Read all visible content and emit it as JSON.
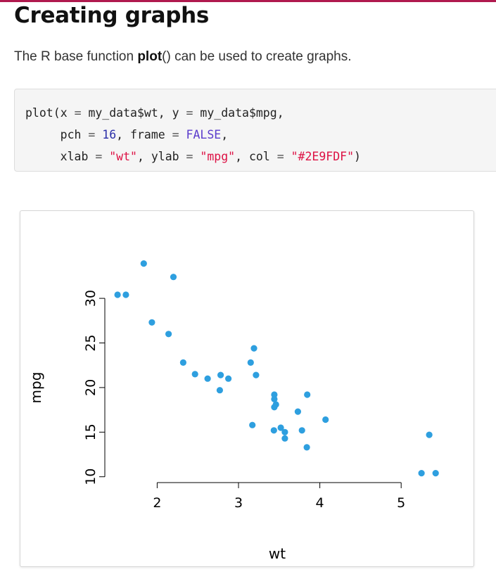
{
  "page": {
    "title": "Creating graphs",
    "intro": {
      "before": "The R base function ",
      "function_name": "plot",
      "after": "() can be used to create graphs."
    }
  },
  "code": {
    "fn": "plot",
    "arg_x": "x",
    "val_x": "my_data$wt",
    "arg_y": "y",
    "val_y": "my_data$mpg",
    "arg_pch": "pch",
    "val_pch": "16",
    "arg_frame": "frame",
    "val_frame": "FALSE",
    "arg_xlab": "xlab",
    "val_xlab": "\"wt\"",
    "arg_ylab": "ylab",
    "val_ylab": "\"mpg\"",
    "arg_col": "col",
    "val_col": "\"#2E9FDF\""
  },
  "chart_data": {
    "type": "scatter",
    "title": "",
    "xlabel": "wt",
    "ylabel": "mpg",
    "xlim": [
      1.513,
      5.424
    ],
    "ylim": [
      10,
      33.9
    ],
    "xticks": [
      2,
      3,
      4,
      5
    ],
    "yticks": [
      10,
      15,
      20,
      25,
      30
    ],
    "frame": false,
    "grid": false,
    "legend": "none",
    "point_color": "#2E9FDF",
    "series": [
      {
        "points": [
          [
            2.62,
            21.0
          ],
          [
            2.875,
            21.0
          ],
          [
            2.32,
            22.8
          ],
          [
            3.215,
            21.4
          ],
          [
            3.44,
            18.7
          ],
          [
            3.46,
            18.1
          ],
          [
            3.57,
            14.3
          ],
          [
            3.19,
            24.4
          ],
          [
            3.15,
            22.8
          ],
          [
            3.44,
            19.2
          ],
          [
            3.44,
            17.8
          ],
          [
            4.07,
            16.4
          ],
          [
            3.73,
            17.3
          ],
          [
            3.78,
            15.2
          ],
          [
            5.25,
            10.4
          ],
          [
            5.424,
            10.4
          ],
          [
            5.345,
            14.7
          ],
          [
            2.2,
            32.4
          ],
          [
            1.615,
            30.4
          ],
          [
            1.835,
            33.9
          ],
          [
            2.465,
            21.5
          ],
          [
            3.52,
            15.5
          ],
          [
            3.435,
            15.2
          ],
          [
            3.84,
            13.3
          ],
          [
            3.845,
            19.2
          ],
          [
            1.935,
            27.3
          ],
          [
            2.14,
            26.0
          ],
          [
            1.513,
            30.4
          ],
          [
            3.17,
            15.8
          ],
          [
            2.77,
            19.7
          ],
          [
            3.57,
            15.0
          ],
          [
            2.78,
            21.4
          ]
        ]
      }
    ]
  }
}
